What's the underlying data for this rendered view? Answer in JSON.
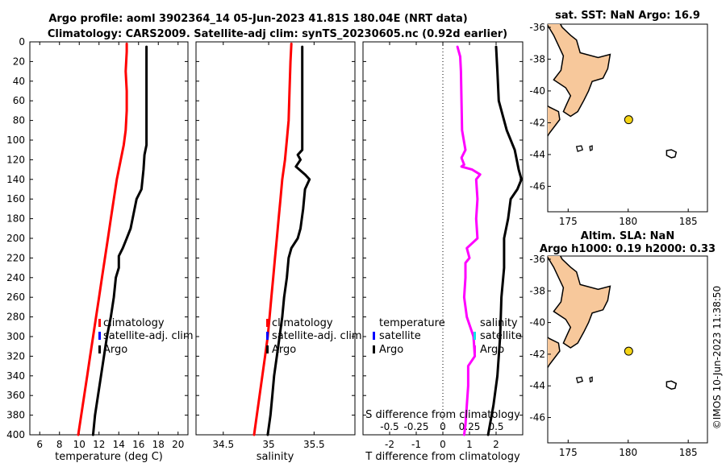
{
  "title": {
    "line1": "Argo profile: aoml 3902364_14 05-Jun-2023 41.81S 180.04E (NRT data)",
    "line2": "Climatology: CARS2009. Satellite-adj clim: synTS_20230605.nc (0.92d earlier)"
  },
  "footer": "©IMOS 10-Jun-2023 11:38:50",
  "colors": {
    "climatology": "#ff0000",
    "satellite": "#0000ff",
    "argo": "#000000",
    "salinity_diff": "#ff00ff",
    "salinity_sat": "#00e5e5",
    "land": "#f7c89b",
    "float": "#f5d415"
  },
  "chart_data": [
    {
      "type": "line",
      "id": "temperature",
      "xlabel": "temperature (deg C)",
      "xlim": [
        5,
        21
      ],
      "ylim": [
        0,
        400
      ],
      "xticks": [
        6,
        8,
        10,
        12,
        14,
        16,
        18,
        20
      ],
      "yticks": [
        0,
        20,
        40,
        60,
        80,
        100,
        120,
        140,
        160,
        180,
        200,
        220,
        240,
        260,
        280,
        300,
        320,
        340,
        360,
        380,
        400
      ],
      "legend": [
        "climatology",
        "satellite-adj. clim",
        "Argo"
      ],
      "series": [
        {
          "name": "climatology",
          "color": "#ff0000",
          "points": [
            [
              14.8,
              2
            ],
            [
              14.8,
              10
            ],
            [
              14.7,
              30
            ],
            [
              14.8,
              50
            ],
            [
              14.8,
              70
            ],
            [
              14.7,
              90
            ],
            [
              14.5,
              105
            ],
            [
              14.2,
              120
            ],
            [
              13.8,
              140
            ],
            [
              13.5,
              160
            ],
            [
              13.2,
              180
            ],
            [
              12.9,
              200
            ],
            [
              12.6,
              220
            ],
            [
              12.3,
              240
            ],
            [
              12.0,
              260
            ],
            [
              11.7,
              280
            ],
            [
              11.4,
              300
            ],
            [
              11.1,
              320
            ],
            [
              10.8,
              340
            ],
            [
              10.5,
              360
            ],
            [
              10.2,
              380
            ],
            [
              9.9,
              400
            ]
          ]
        },
        {
          "name": "Argo",
          "color": "#000000",
          "points": [
            [
              16.8,
              5
            ],
            [
              16.8,
              30
            ],
            [
              16.8,
              60
            ],
            [
              16.8,
              90
            ],
            [
              16.8,
              105
            ],
            [
              16.6,
              115
            ],
            [
              16.5,
              130
            ],
            [
              16.3,
              150
            ],
            [
              15.8,
              160
            ],
            [
              15.5,
              175
            ],
            [
              15.2,
              190
            ],
            [
              14.8,
              200
            ],
            [
              14.4,
              210
            ],
            [
              14.0,
              218
            ],
            [
              14.0,
              230
            ],
            [
              13.7,
              240
            ],
            [
              13.5,
              260
            ],
            [
              13.2,
              280
            ],
            [
              12.8,
              300
            ],
            [
              12.5,
              320
            ],
            [
              12.2,
              340
            ],
            [
              11.9,
              360
            ],
            [
              11.6,
              380
            ],
            [
              11.4,
              400
            ]
          ]
        }
      ]
    },
    {
      "type": "line",
      "id": "salinity",
      "xlabel": "salinity",
      "xlim": [
        34.2,
        35.95
      ],
      "ylim": [
        0,
        400
      ],
      "xticks": [
        34.5,
        35,
        35.5
      ],
      "xticklabels": [
        "34.5",
        "35",
        "35.5"
      ],
      "legend": [
        "climatology",
        "satellite-adj. clim",
        "Argo"
      ],
      "series": [
        {
          "name": "climatology",
          "color": "#ff0000",
          "points": [
            [
              35.25,
              2
            ],
            [
              35.24,
              20
            ],
            [
              35.23,
              50
            ],
            [
              35.22,
              80
            ],
            [
              35.2,
              100
            ],
            [
              35.18,
              120
            ],
            [
              35.15,
              140
            ],
            [
              35.13,
              160
            ],
            [
              35.11,
              180
            ],
            [
              35.09,
              200
            ],
            [
              35.07,
              220
            ],
            [
              35.05,
              240
            ],
            [
              35.03,
              260
            ],
            [
              35.01,
              280
            ],
            [
              34.99,
              300
            ],
            [
              34.96,
              320
            ],
            [
              34.93,
              340
            ],
            [
              34.9,
              360
            ],
            [
              34.87,
              380
            ],
            [
              34.84,
              400
            ]
          ]
        },
        {
          "name": "Argo",
          "color": "#000000",
          "points": [
            [
              35.37,
              5
            ],
            [
              35.37,
              40
            ],
            [
              35.37,
              80
            ],
            [
              35.37,
              110
            ],
            [
              35.32,
              115
            ],
            [
              35.35,
              120
            ],
            [
              35.3,
              127
            ],
            [
              35.4,
              135
            ],
            [
              35.45,
              140
            ],
            [
              35.4,
              150
            ],
            [
              35.38,
              170
            ],
            [
              35.35,
              190
            ],
            [
              35.32,
              200
            ],
            [
              35.25,
              210
            ],
            [
              35.22,
              220
            ],
            [
              35.2,
              240
            ],
            [
              35.17,
              260
            ],
            [
              35.15,
              280
            ],
            [
              35.12,
              300
            ],
            [
              35.09,
              320
            ],
            [
              35.06,
              340
            ],
            [
              35.04,
              360
            ],
            [
              35.02,
              380
            ],
            [
              34.99,
              400
            ]
          ]
        }
      ]
    },
    {
      "type": "line",
      "id": "difference",
      "xlabel": "T difference from climatology",
      "xlabel_top": "S difference from climatology",
      "xlim": [
        -3,
        3
      ],
      "ylim": [
        0,
        400
      ],
      "xticks": [
        -2,
        -1,
        0,
        1,
        2
      ],
      "xticks_top": [
        -0.5,
        -0.25,
        0,
        0.25,
        0.5
      ],
      "xticklabels_top": [
        "-0.5",
        "-0.25",
        "0",
        "0.25",
        "0.5"
      ],
      "legend_left": [
        "temperature",
        "satellite",
        "Argo"
      ],
      "legend_right": [
        "salinity",
        "satellite",
        "Argo"
      ],
      "series": [
        {
          "name": "S difference (Argo)",
          "color": "#ff00ff",
          "points": [
            [
              0.55,
              5
            ],
            [
              0.65,
              15
            ],
            [
              0.68,
              30
            ],
            [
              0.7,
              60
            ],
            [
              0.72,
              90
            ],
            [
              0.85,
              110
            ],
            [
              0.7,
              118
            ],
            [
              0.8,
              125
            ],
            [
              0.7,
              127
            ],
            [
              1.1,
              130
            ],
            [
              1.4,
              135
            ],
            [
              1.25,
              140
            ],
            [
              1.3,
              160
            ],
            [
              1.25,
              180
            ],
            [
              1.3,
              200
            ],
            [
              0.9,
              210
            ],
            [
              1.0,
              220
            ],
            [
              0.85,
              225
            ],
            [
              0.85,
              240
            ],
            [
              0.8,
              260
            ],
            [
              0.9,
              280
            ],
            [
              1.15,
              300
            ],
            [
              1.2,
              320
            ],
            [
              0.95,
              330
            ],
            [
              0.95,
              350
            ],
            [
              0.9,
              370
            ],
            [
              0.85,
              390
            ],
            [
              0.8,
              400
            ]
          ]
        },
        {
          "name": "T difference (Argo)",
          "color": "#000000",
          "points": [
            [
              2.0,
              5
            ],
            [
              2.05,
              30
            ],
            [
              2.1,
              60
            ],
            [
              2.4,
              90
            ],
            [
              2.7,
              110
            ],
            [
              2.85,
              130
            ],
            [
              2.95,
              140
            ],
            [
              2.8,
              150
            ],
            [
              2.55,
              160
            ],
            [
              2.45,
              180
            ],
            [
              2.3,
              200
            ],
            [
              2.3,
              230
            ],
            [
              2.2,
              260
            ],
            [
              2.15,
              300
            ],
            [
              2.05,
              340
            ],
            [
              1.9,
              370
            ],
            [
              1.7,
              400
            ]
          ]
        }
      ]
    }
  ],
  "maps": [
    {
      "title": "sat. SST: NaN Argo: 16.9",
      "float_lon": 180.04,
      "float_lat": -41.81,
      "xticks": [
        175,
        180,
        185
      ],
      "yticks": [
        -36,
        -38,
        -40,
        -42,
        -44,
        -46
      ]
    },
    {
      "title1": "Altim. SLA: NaN",
      "title2": "Argo h1000: 0.19 h2000: 0.33",
      "float_lon": 180.04,
      "float_lat": -41.81,
      "xticks": [
        175,
        180,
        185
      ],
      "yticks": [
        -36,
        -38,
        -40,
        -42,
        -44,
        -46
      ]
    }
  ]
}
